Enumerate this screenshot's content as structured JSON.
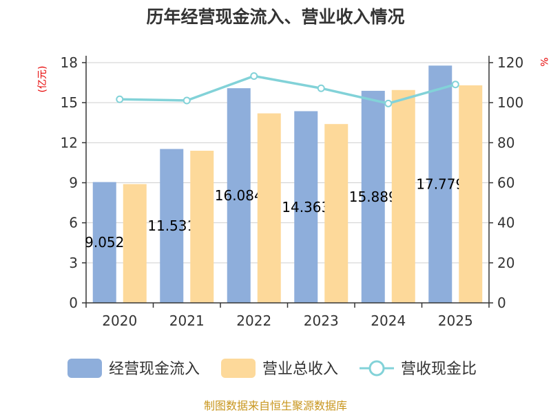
{
  "title": "历年经营现金流入、营业收入情况",
  "source": "制图数据来自恒生聚源数据库",
  "left_unit": "(亿元)",
  "right_unit": "%",
  "legend": [
    {
      "label": "经营现金流入",
      "color": "#8eaedb",
      "type": "bar"
    },
    {
      "label": "营业总收入",
      "color": "#fdd99a",
      "type": "bar"
    },
    {
      "label": "营收现金比",
      "color": "#82d2d8",
      "type": "line"
    }
  ],
  "chart_data": {
    "type": "bar",
    "categories": [
      "2020",
      "2021",
      "2022",
      "2023",
      "2024",
      "2025"
    ],
    "series": [
      {
        "name": "经营现金流入",
        "axis": "left",
        "type": "bar",
        "color": "#8eaedb",
        "values": [
          9.052,
          11.531,
          16.084,
          14.363,
          15.889,
          17.779
        ],
        "labels": [
          "9.052",
          "11.531",
          "16.084",
          "14.363",
          "15.889",
          "17.779"
        ]
      },
      {
        "name": "营业总收入",
        "axis": "left",
        "type": "bar",
        "color": "#fdd99a",
        "values": [
          8.9,
          11.4,
          14.2,
          13.4,
          15.95,
          16.3
        ]
      },
      {
        "name": "营收现金比",
        "axis": "right",
        "type": "line",
        "color": "#82d2d8",
        "values": [
          101.7,
          101.1,
          113.3,
          107.2,
          99.6,
          109.1
        ]
      }
    ],
    "y_left": {
      "min": 0,
      "max": 18,
      "ticks": [
        "0",
        "3",
        "6",
        "9",
        "12",
        "15",
        "18"
      ]
    },
    "y_right": {
      "min": 0,
      "max": 120,
      "ticks": [
        "0",
        "20",
        "40",
        "60",
        "80",
        "100",
        "120"
      ]
    },
    "grid": true,
    "legend_position": "bottom"
  }
}
